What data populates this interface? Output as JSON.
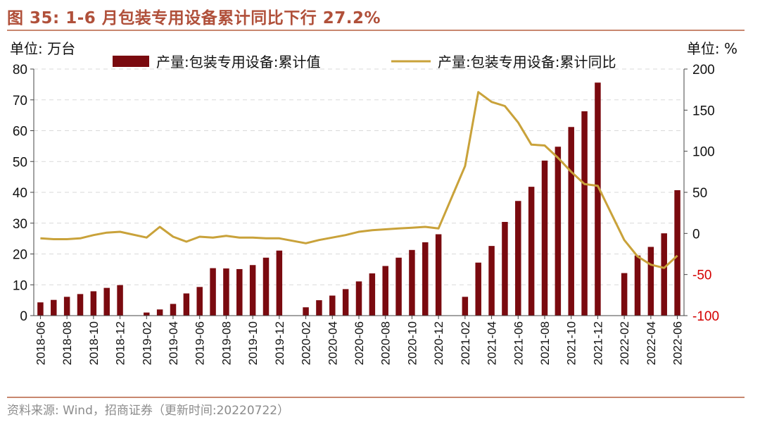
{
  "title": "图 35:  1-6 月包装专用设备累计同比下行 27.2%",
  "source": "资料来源:  Wind，招商证券（更新时间:20220722）",
  "colors": {
    "bar": "#7a0a0f",
    "line": "#c9a23a",
    "negative_tick": "#d40000",
    "grid": "#d9d9d9",
    "rule": "#c8876f"
  },
  "chart_data": {
    "type": "bar+line",
    "left_unit": "单位:  万台",
    "right_unit": "单位:  %",
    "legend": {
      "bar": "产量:包装专用设备:累计值",
      "line": "产量:包装专用设备:累计同比",
      "placement": "top"
    },
    "ylim_left": [
      0,
      80
    ],
    "yticks_left": [
      0,
      10,
      20,
      30,
      40,
      50,
      60,
      70,
      80
    ],
    "ylim_right": [
      -100,
      200
    ],
    "yticks_right": [
      -100,
      -50,
      0,
      50,
      100,
      150,
      200
    ],
    "grid": true,
    "xtick_labels": [
      "2018-06",
      "2018-08",
      "2018-10",
      "2018-12",
      "2019-02",
      "2019-04",
      "2019-06",
      "2019-08",
      "2019-10",
      "2019-12",
      "2020-02",
      "2020-04",
      "2020-06",
      "2020-08",
      "2020-10",
      "2020-12",
      "2021-02",
      "2021-04",
      "2021-06",
      "2021-08",
      "2021-10",
      "2021-12",
      "2022-02",
      "2022-04",
      "2022-06"
    ],
    "x": [
      "2018-06",
      "2018-07",
      "2018-08",
      "2018-09",
      "2018-10",
      "2018-11",
      "2018-12",
      "2019-01",
      "2019-02",
      "2019-03",
      "2019-04",
      "2019-05",
      "2019-06",
      "2019-07",
      "2019-08",
      "2019-09",
      "2019-10",
      "2019-11",
      "2019-12",
      "2020-01",
      "2020-02",
      "2020-03",
      "2020-04",
      "2020-05",
      "2020-06",
      "2020-07",
      "2020-08",
      "2020-09",
      "2020-10",
      "2020-11",
      "2020-12",
      "2021-01",
      "2021-02",
      "2021-03",
      "2021-04",
      "2021-05",
      "2021-06",
      "2021-07",
      "2021-08",
      "2021-09",
      "2021-10",
      "2021-11",
      "2021-12",
      "2022-01",
      "2022-02",
      "2022-03",
      "2022-04",
      "2022-05",
      "2022-06"
    ],
    "series": [
      {
        "name": "产量:包装专用设备:累计值",
        "type": "bar",
        "axis": "left",
        "values": [
          4.3,
          5.1,
          6.1,
          7.0,
          7.9,
          9.0,
          9.9,
          null,
          1.0,
          2.0,
          3.8,
          7.2,
          9.3,
          15.4,
          15.3,
          15.1,
          16.4,
          18.8,
          21.1,
          null,
          2.7,
          5.0,
          6.5,
          8.6,
          11.1,
          13.7,
          16.1,
          18.8,
          21.3,
          23.8,
          26.4,
          null,
          6.1,
          17.2,
          22.6,
          30.4,
          37.2,
          41.8,
          50.3,
          54.8,
          61.2,
          66.3,
          75.6,
          null,
          13.8,
          19.5,
          22.3,
          26.7,
          40.7
        ]
      },
      {
        "name": "产量:包装专用设备:累计同比",
        "type": "line",
        "axis": "right",
        "values": [
          -6,
          -7,
          -7,
          -6,
          -2,
          1,
          2,
          null,
          -5,
          8,
          -4,
          -10,
          -4,
          -5,
          -3,
          -5,
          -5,
          -6,
          -6,
          null,
          -12,
          -8,
          -5,
          -2,
          2,
          4,
          5,
          6,
          7,
          8,
          6,
          null,
          82,
          172,
          160,
          155,
          135,
          108,
          107,
          92,
          75,
          60,
          58,
          null,
          -8,
          -28,
          -38,
          -42,
          -27
        ]
      }
    ]
  }
}
